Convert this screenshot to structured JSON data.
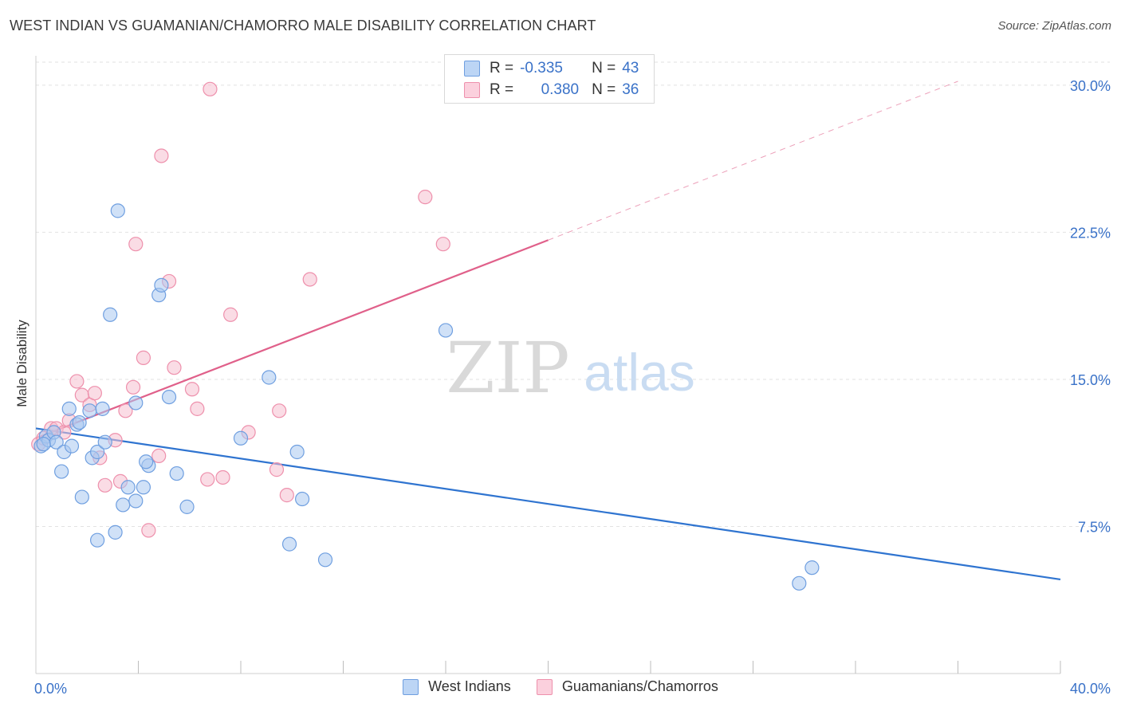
{
  "header": {
    "title": "WEST INDIAN VS GUAMANIAN/CHAMORRO MALE DISABILITY CORRELATION CHART",
    "source": "Source: ZipAtlas.com"
  },
  "watermark": {
    "zip": "ZIP",
    "atlas": "atlas"
  },
  "legend_top": {
    "rows": [
      {
        "r_label": "R =",
        "r_value": "-0.335",
        "n_label": "N =",
        "n_value": "43"
      },
      {
        "r_label": "R =",
        "r_value": "0.380",
        "n_label": "N =",
        "n_value": "36"
      }
    ]
  },
  "legend_bottom": {
    "items": [
      "West Indians",
      "Guamanians/Chamorros"
    ]
  },
  "colors": {
    "blue_fill": "#a9c8f0",
    "blue_stroke": "#6f9fe0",
    "blue_line": "#2f74d0",
    "pink_fill": "#f6bfd0",
    "pink_stroke": "#ee90ac",
    "pink_line": "#e0608a",
    "tick_label": "#3a72c8",
    "grid": "#e2e2e2"
  },
  "chart_data": {
    "type": "scatter",
    "title": "WEST INDIAN VS GUAMANIAN/CHAMORRO MALE DISABILITY CORRELATION CHART",
    "xlabel": "",
    "ylabel": "Male Disability",
    "xlim": [
      0,
      40
    ],
    "ylim": [
      0,
      31.5
    ],
    "x_tick_labels": [
      {
        "value": 0,
        "label": "0.0%"
      },
      {
        "value": 40,
        "label": "40.0%"
      }
    ],
    "y_tick_labels": [
      {
        "value": 7.5,
        "label": "7.5%"
      },
      {
        "value": 15,
        "label": "15.0%"
      },
      {
        "value": 22.5,
        "label": "22.5%"
      },
      {
        "value": 30,
        "label": "30.0%"
      }
    ],
    "x_minor_ticks": [
      4,
      8,
      12,
      16,
      20,
      24,
      28,
      32,
      36,
      40
    ],
    "grid": true,
    "legend_position": "top-center",
    "series": [
      {
        "name": "West Indians",
        "color": "blue",
        "points": [
          [
            0.2,
            11.6
          ],
          [
            0.4,
            12.1
          ],
          [
            0.5,
            11.9
          ],
          [
            0.7,
            12.3
          ],
          [
            0.8,
            11.8
          ],
          [
            1.0,
            10.3
          ],
          [
            1.1,
            11.3
          ],
          [
            1.4,
            11.6
          ],
          [
            1.3,
            13.5
          ],
          [
            1.6,
            12.7
          ],
          [
            1.7,
            12.8
          ],
          [
            1.8,
            9.0
          ],
          [
            2.1,
            13.4
          ],
          [
            2.2,
            11.0
          ],
          [
            2.4,
            11.3
          ],
          [
            2.6,
            13.5
          ],
          [
            2.7,
            11.8
          ],
          [
            2.9,
            18.3
          ],
          [
            3.1,
            7.2
          ],
          [
            3.2,
            23.6
          ],
          [
            2.4,
            6.8
          ],
          [
            3.4,
            8.6
          ],
          [
            3.6,
            9.5
          ],
          [
            3.9,
            8.8
          ],
          [
            3.9,
            13.8
          ],
          [
            4.2,
            9.5
          ],
          [
            4.4,
            10.6
          ],
          [
            4.3,
            10.8
          ],
          [
            4.8,
            19.3
          ],
          [
            4.9,
            19.8
          ],
          [
            5.2,
            14.1
          ],
          [
            5.5,
            10.2
          ],
          [
            5.9,
            8.5
          ],
          [
            8.0,
            12.0
          ],
          [
            9.1,
            15.1
          ],
          [
            9.9,
            6.6
          ],
          [
            10.2,
            11.3
          ],
          [
            10.4,
            8.9
          ],
          [
            11.3,
            5.8
          ],
          [
            16.0,
            17.5
          ],
          [
            29.8,
            4.6
          ],
          [
            30.3,
            5.4
          ],
          [
            0.3,
            11.7
          ]
        ]
      },
      {
        "name": "Guamanians/Chamorros",
        "color": "pink",
        "points": [
          [
            0.1,
            11.7
          ],
          [
            0.3,
            12.0
          ],
          [
            0.6,
            12.5
          ],
          [
            0.8,
            12.5
          ],
          [
            1.1,
            12.3
          ],
          [
            1.3,
            12.9
          ],
          [
            1.6,
            14.9
          ],
          [
            1.8,
            14.2
          ],
          [
            2.1,
            13.7
          ],
          [
            2.3,
            14.3
          ],
          [
            2.5,
            11.0
          ],
          [
            2.7,
            9.6
          ],
          [
            3.1,
            11.9
          ],
          [
            3.3,
            9.8
          ],
          [
            3.5,
            13.4
          ],
          [
            3.8,
            14.6
          ],
          [
            3.9,
            21.9
          ],
          [
            4.2,
            16.1
          ],
          [
            4.4,
            7.3
          ],
          [
            4.8,
            11.1
          ],
          [
            4.9,
            26.4
          ],
          [
            5.2,
            20.0
          ],
          [
            5.4,
            15.6
          ],
          [
            6.1,
            14.5
          ],
          [
            6.3,
            13.5
          ],
          [
            6.7,
            9.9
          ],
          [
            6.8,
            29.8
          ],
          [
            7.3,
            10.0
          ],
          [
            7.6,
            18.3
          ],
          [
            8.3,
            12.3
          ],
          [
            9.4,
            10.4
          ],
          [
            9.5,
            13.4
          ],
          [
            9.8,
            9.1
          ],
          [
            10.7,
            20.1
          ],
          [
            15.2,
            24.3
          ],
          [
            15.9,
            21.9
          ]
        ]
      }
    ],
    "trendlines": [
      {
        "series": "West Indians",
        "x": [
          0,
          40
        ],
        "y": [
          12.5,
          4.8
        ],
        "style": "solid"
      },
      {
        "series": "Guamanians/Chamorros",
        "x": [
          0,
          20
        ],
        "y": [
          12.0,
          22.1
        ],
        "style": "solid"
      },
      {
        "series": "Guamanians/Chamorros",
        "x": [
          20,
          36
        ],
        "y": [
          22.1,
          30.2
        ],
        "style": "dashed"
      }
    ]
  }
}
